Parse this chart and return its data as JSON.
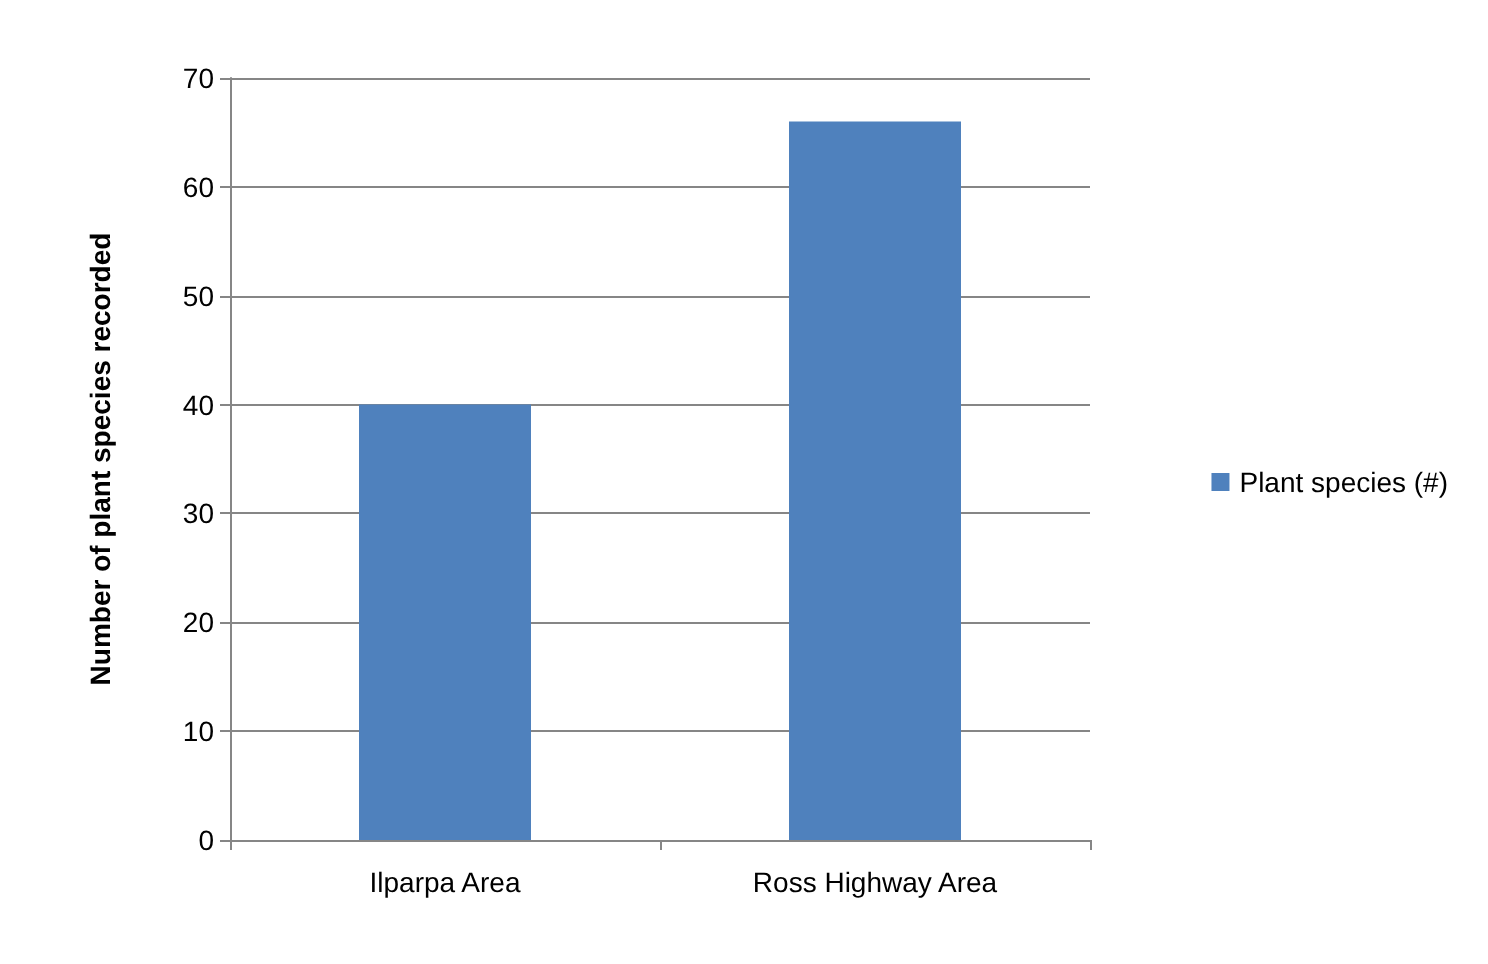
{
  "chart_data": {
    "type": "bar",
    "ylabel": "Number of plant species recorded",
    "categories": [
      "Ilparpa Area",
      "Ross Highway Area"
    ],
    "series": [
      {
        "name": "Plant species (#)",
        "color": "#4f81bd",
        "values": [
          40,
          66
        ]
      }
    ],
    "ylim": [
      0,
      70
    ],
    "yticks": [
      0,
      10,
      20,
      30,
      40,
      50,
      60,
      70
    ],
    "grid": "y",
    "legend": "right"
  }
}
